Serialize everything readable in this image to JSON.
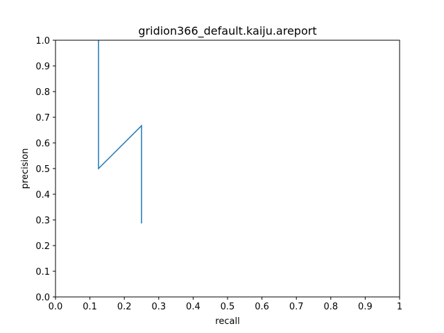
{
  "chart_data": {
    "type": "line",
    "title": "gridion366_default.kaiju.areport",
    "xlabel": "recall",
    "ylabel": "precision",
    "xlim": [
      0,
      1
    ],
    "ylim": [
      0,
      1
    ],
    "xticks": [
      "0.0",
      "0.1",
      "0.2",
      "0.3",
      "0.4",
      "0.5",
      "0.6",
      "0.7",
      "0.8",
      "0.9",
      "1"
    ],
    "yticks": [
      "0.0",
      "0.1",
      "0.2",
      "0.3",
      "0.4",
      "0.5",
      "0.6",
      "0.7",
      "0.8",
      "0.9",
      "1.0"
    ],
    "grid": false,
    "series": [
      {
        "color": "#1f77b4",
        "x": [
          0.125,
          0.125,
          0.25,
          0.25
        ],
        "y": [
          1.0,
          0.5,
          0.667,
          0.286
        ]
      }
    ]
  }
}
